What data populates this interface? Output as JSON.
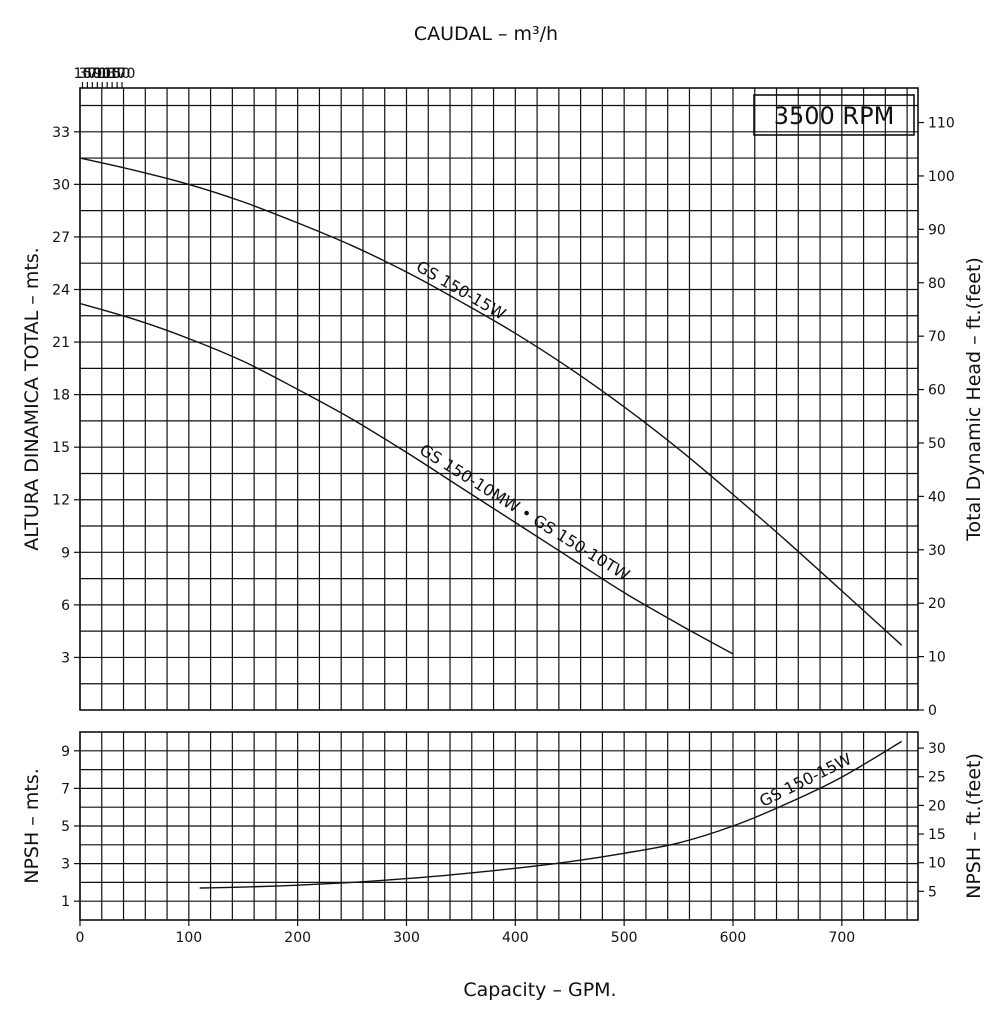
{
  "chart_data": [
    {
      "type": "line",
      "title": "CAUDAL – m³/h",
      "speed_box": "3500 RPM",
      "xlabel": "Capacity – GPM.",
      "x2label": "CAUDAL – m³/h",
      "ylabel": "ALTURA DINAMICA TOTAL – mts.",
      "y2label": "Total Dynamic Head – ft.(feet)",
      "xlim": [
        0,
        770
      ],
      "ylim": [
        0,
        35.5
      ],
      "grid": true,
      "x_ticks": [
        0,
        100,
        200,
        300,
        400,
        500,
        600,
        700
      ],
      "x2_ticks": [
        10,
        30,
        50,
        70,
        90,
        110,
        130,
        150,
        170
      ],
      "y_ticks": [
        3,
        6,
        9,
        12,
        15,
        18,
        21,
        24,
        27,
        30,
        33
      ],
      "y2_ticks": [
        0,
        10,
        20,
        30,
        40,
        50,
        60,
        70,
        80,
        90,
        100,
        110
      ],
      "series": [
        {
          "name": "GS 150-15W",
          "x": [
            0,
            50,
            100,
            150,
            200,
            250,
            300,
            350,
            400,
            450,
            500,
            550,
            600,
            650,
            700,
            755
          ],
          "y": [
            31.5,
            30.8,
            30.0,
            29.0,
            27.8,
            26.5,
            25.0,
            23.3,
            21.5,
            19.5,
            17.3,
            14.9,
            12.3,
            9.6,
            6.8,
            3.7
          ]
        },
        {
          "name": "GS 150-10MW • GS 150-10TW",
          "x": [
            0,
            50,
            100,
            150,
            200,
            250,
            300,
            350,
            400,
            450,
            500,
            550,
            600
          ],
          "y": [
            23.2,
            22.3,
            21.2,
            19.9,
            18.3,
            16.6,
            14.7,
            12.7,
            10.7,
            8.7,
            6.7,
            4.9,
            3.2
          ]
        }
      ]
    },
    {
      "type": "line",
      "xlabel": "Capacity – GPM.",
      "ylabel": "NPSH – mts.",
      "y2label": "NPSH – ft.(feet)",
      "xlim": [
        0,
        770
      ],
      "ylim": [
        0,
        10
      ],
      "grid": true,
      "y_ticks": [
        1,
        3,
        5,
        7,
        9
      ],
      "y2_ticks": [
        5,
        10,
        15,
        20,
        25,
        30
      ],
      "series": [
        {
          "name": "GS 150-15W",
          "x": [
            110,
            150,
            200,
            250,
            300,
            350,
            400,
            450,
            500,
            550,
            600,
            650,
            700,
            755
          ],
          "y": [
            1.7,
            1.75,
            1.85,
            2.0,
            2.2,
            2.45,
            2.75,
            3.1,
            3.55,
            4.1,
            5.0,
            6.2,
            7.6,
            9.5
          ]
        }
      ]
    }
  ]
}
